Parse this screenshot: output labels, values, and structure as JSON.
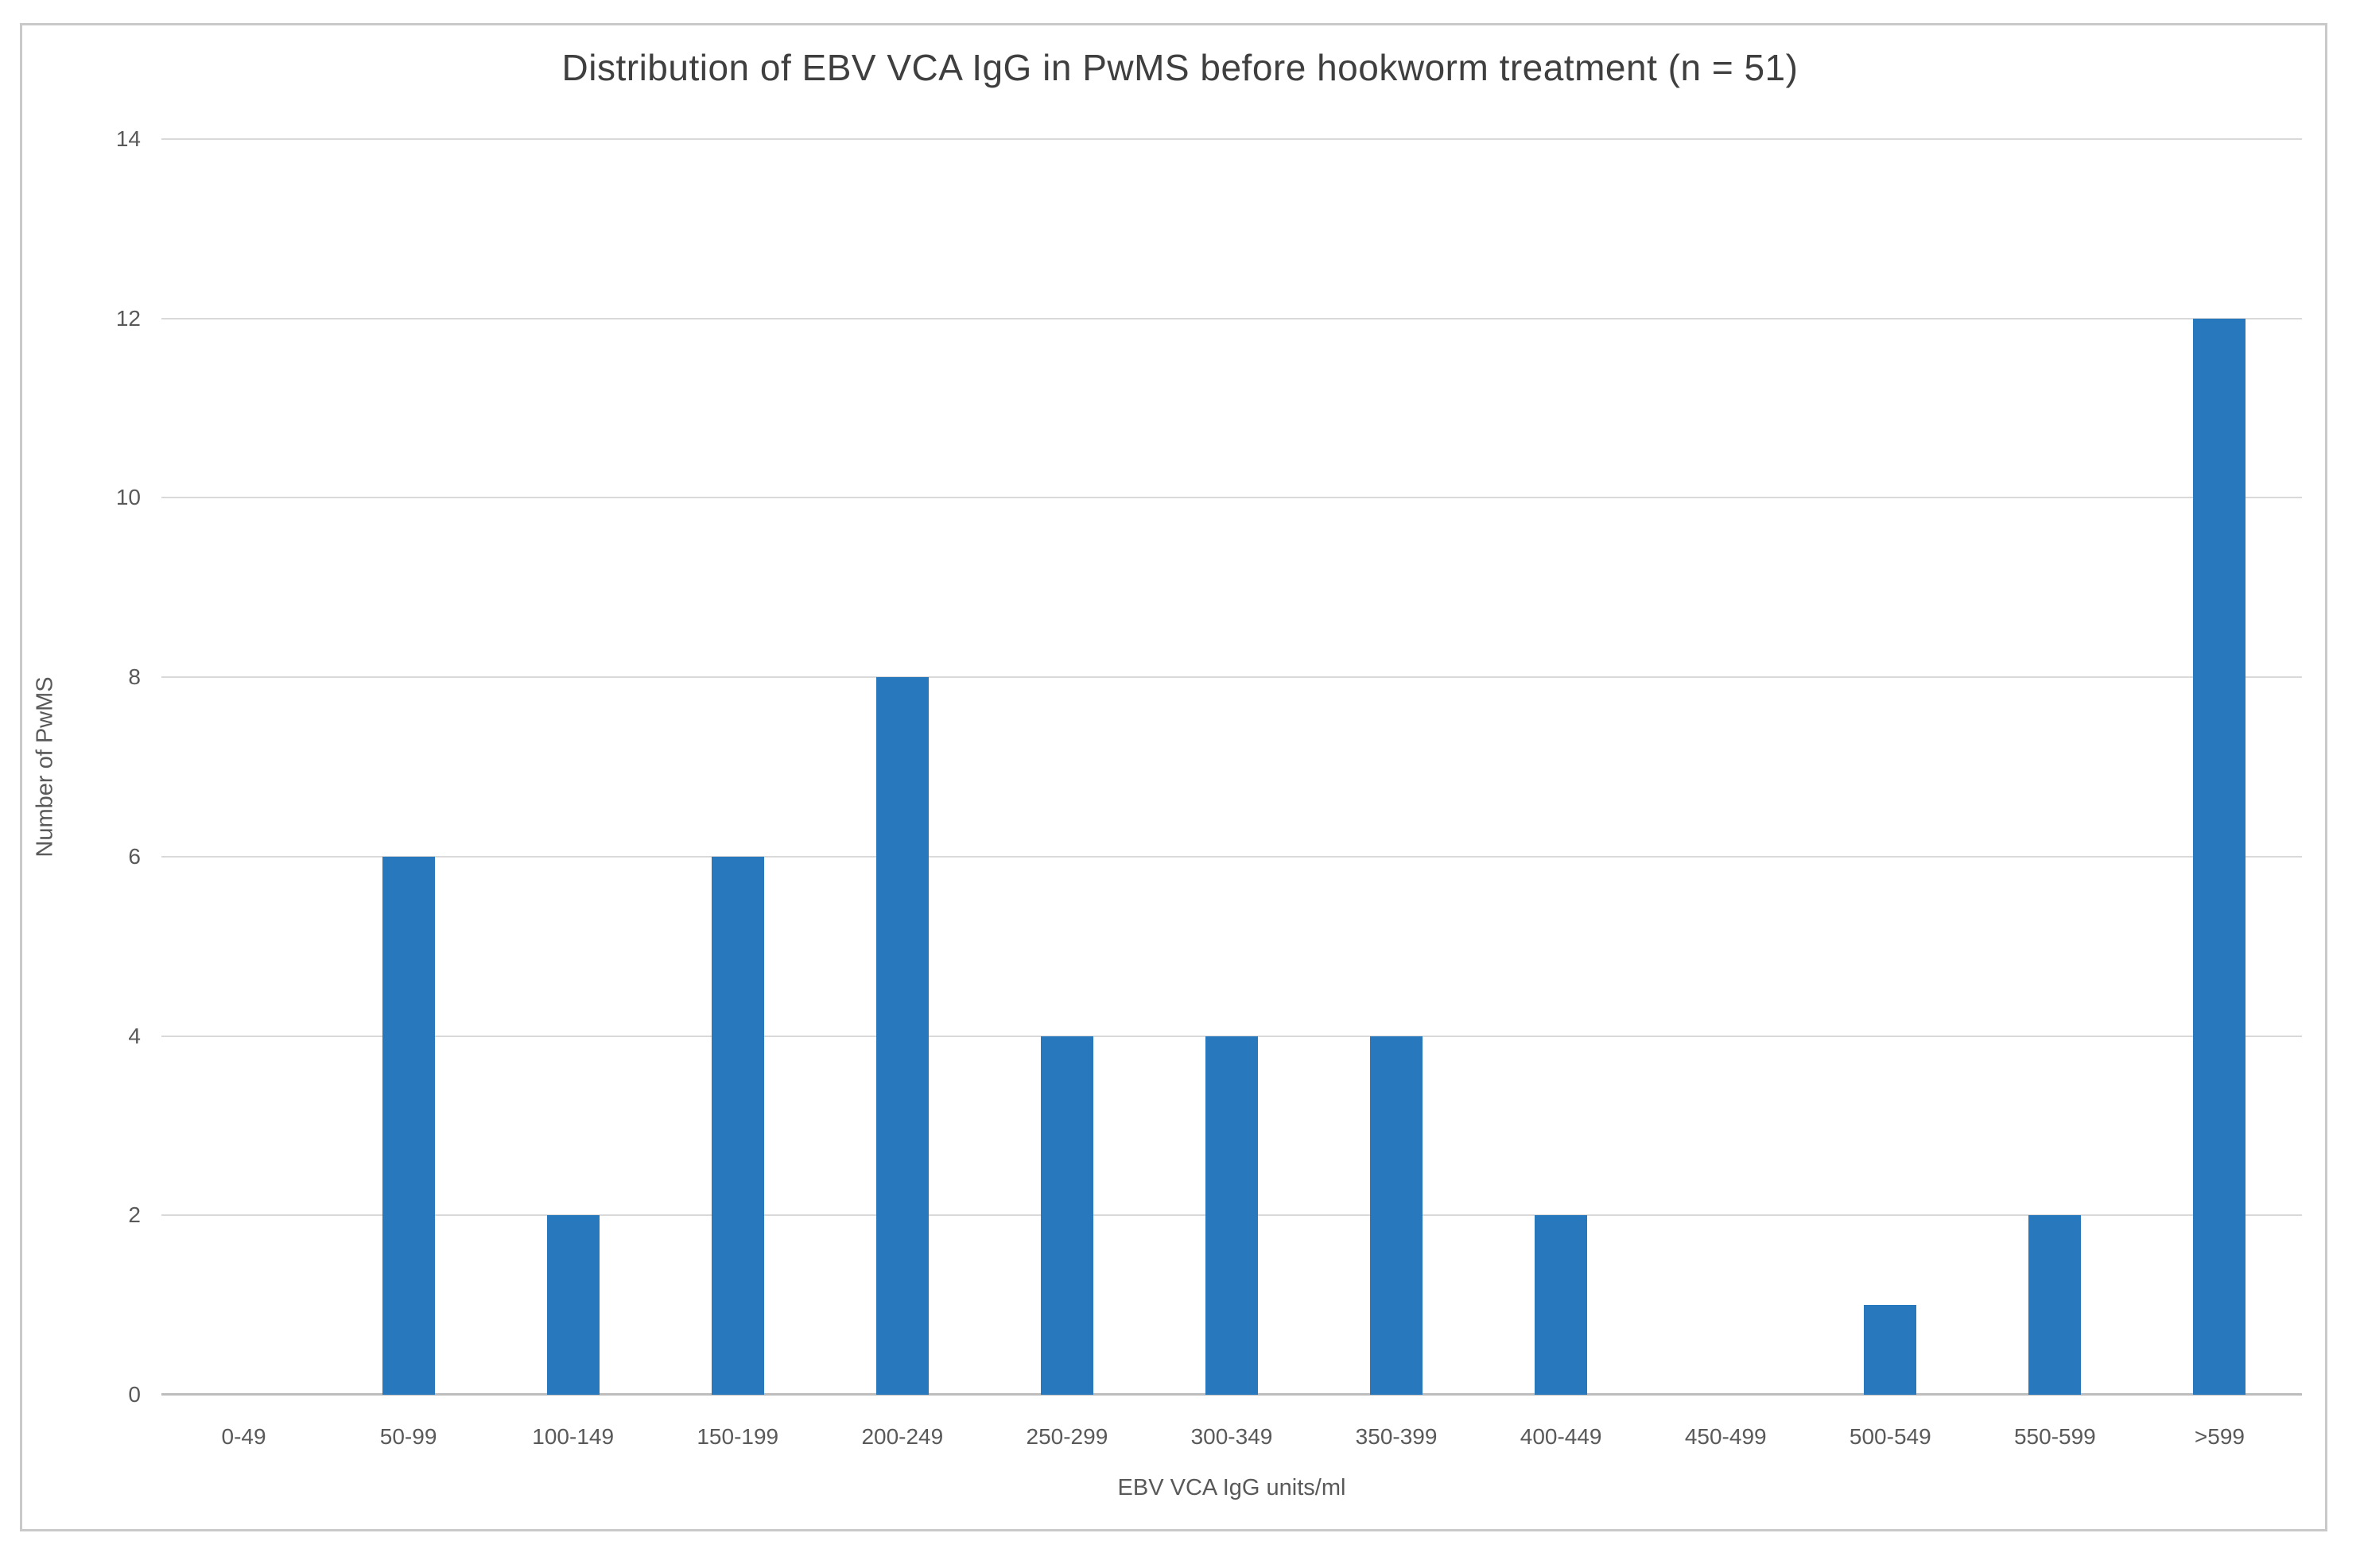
{
  "chart_data": {
    "type": "bar",
    "title": "Distribution of EBV VCA IgG in PwMS before hookworm treatment (n = 51)",
    "categories": [
      "0-49",
      "50-99",
      "100-149",
      "150-199",
      "200-249",
      "250-299",
      "300-349",
      "350-399",
      "400-449",
      "450-499",
      "500-549",
      "550-599",
      ">599"
    ],
    "values": [
      0,
      6,
      2,
      6,
      8,
      4,
      4,
      4,
      2,
      0,
      1,
      2,
      12
    ],
    "xlabel": "EBV VCA IgG units/ml",
    "ylabel": "Number of PwMS",
    "ylim": [
      0,
      14
    ],
    "yticks": [
      0,
      2,
      4,
      6,
      8,
      10,
      12,
      14
    ],
    "grid": "horizontal",
    "legend_position": "none",
    "bar_color": "#2878be",
    "gridline_color": "#d9d9d9",
    "axis_line_color": "#bdbdbd",
    "tick_text_color": "#595959",
    "title_color": "#3f3f3f",
    "frame_border_color": "#c9c9c9"
  }
}
